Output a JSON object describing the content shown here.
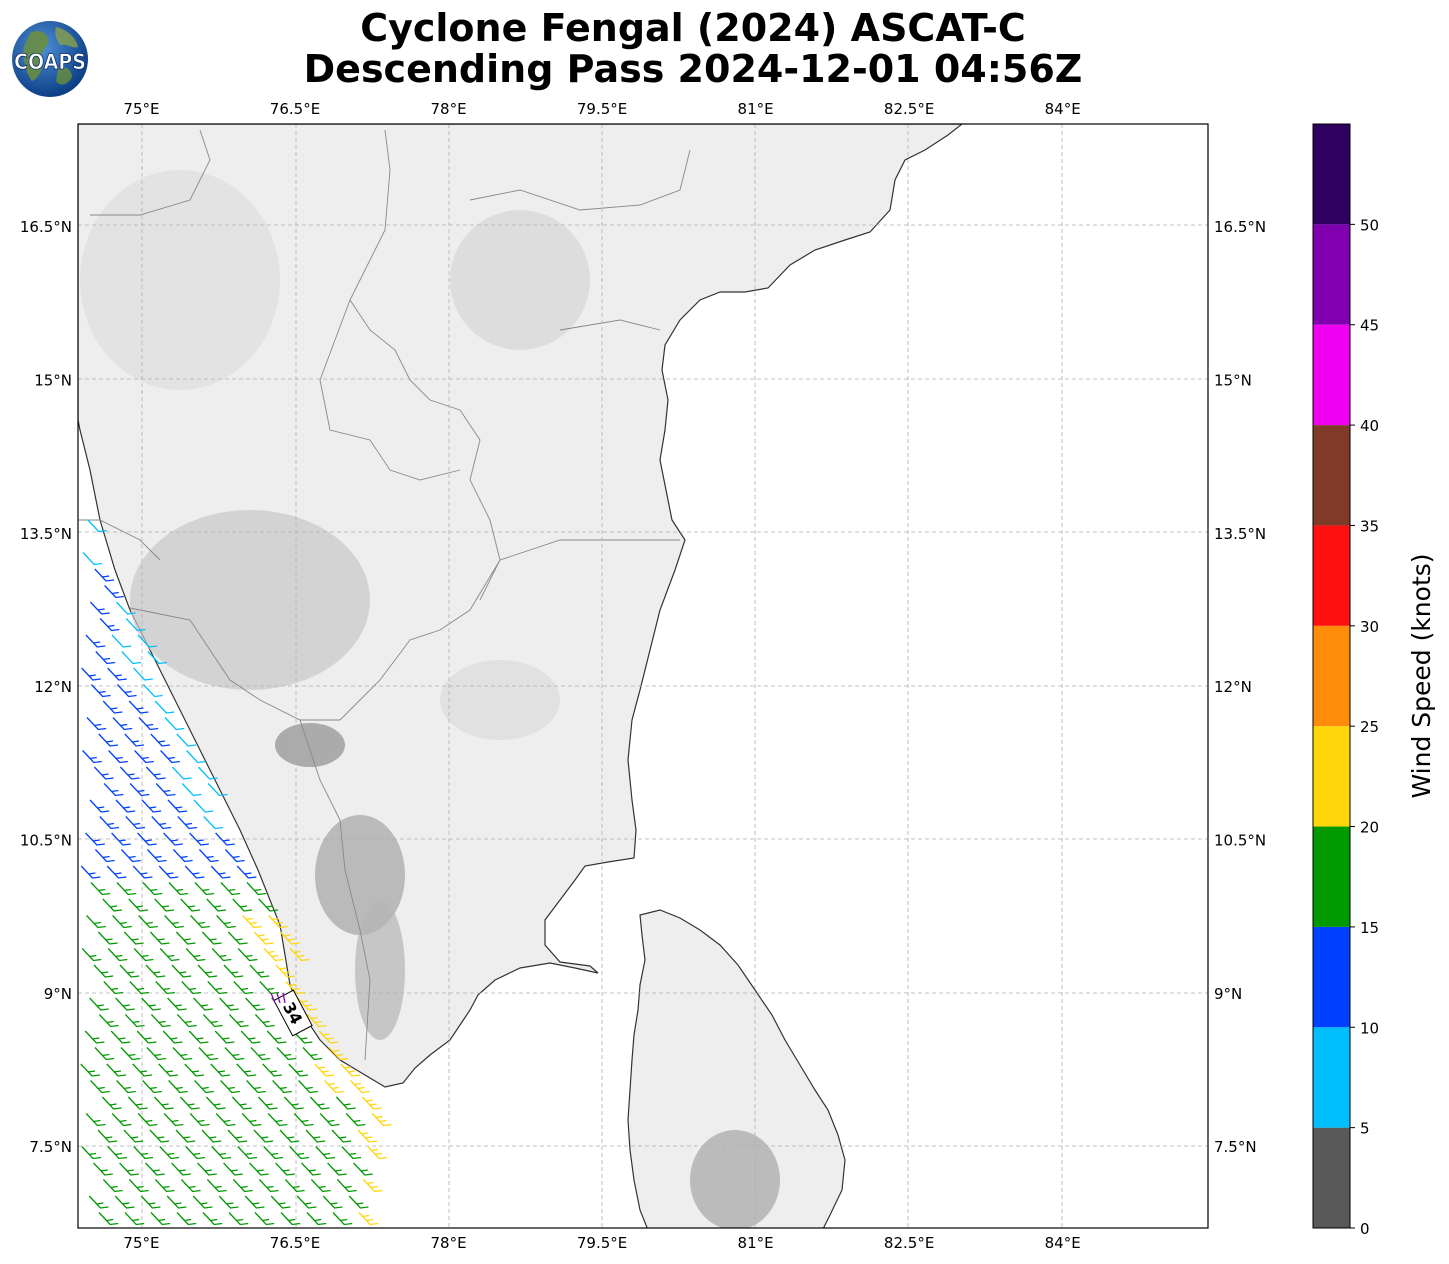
{
  "title_line1": "Cyclone Fengal (2024) ASCAT-C",
  "title_line2": "Descending Pass 2024-12-01 04:56Z",
  "logo_text": "COAPS",
  "map": {
    "lon_ticks": [
      "75°E",
      "76.5°E",
      "78°E",
      "79.5°E",
      "81°E",
      "82.5°E",
      "84°E"
    ],
    "lat_ticks": [
      "16.5°N",
      "15°N",
      "13.5°N",
      "12°N",
      "10.5°N",
      "9°N",
      "7.5°N"
    ],
    "lon_values": [
      75,
      76.5,
      78,
      79.5,
      81,
      82.5,
      84
    ],
    "lat_values": [
      16.5,
      15,
      13.5,
      12,
      10.5,
      9,
      7.5
    ],
    "extent": {
      "lon_min": 74.38,
      "lon_max": 85.42,
      "lat_min": 6.7,
      "lat_max": 17.5
    },
    "grid": true,
    "max_wind_label": "34"
  },
  "colorbar": {
    "label": "Wind Speed (knots)",
    "ticks": [
      "0",
      "5",
      "10",
      "15",
      "20",
      "25",
      "30",
      "35",
      "40",
      "45",
      "50"
    ],
    "bins": [
      {
        "from": 0,
        "to": 5,
        "color": "#595959"
      },
      {
        "from": 5,
        "to": 10,
        "color": "#00bfff"
      },
      {
        "from": 10,
        "to": 15,
        "color": "#0040ff"
      },
      {
        "from": 15,
        "to": 20,
        "color": "#009900"
      },
      {
        "from": 20,
        "to": 25,
        "color": "#ffd60a"
      },
      {
        "from": 25,
        "to": 30,
        "color": "#ff8c0a"
      },
      {
        "from": 30,
        "to": 35,
        "color": "#ff1010"
      },
      {
        "from": 35,
        "to": 40,
        "color": "#7f3b28"
      },
      {
        "from": 40,
        "to": 45,
        "color": "#f000f0"
      },
      {
        "from": 45,
        "to": 50,
        "color": "#8000b0"
      },
      {
        "from": 50,
        "to": 55,
        "color": "#2e005f"
      }
    ]
  }
}
